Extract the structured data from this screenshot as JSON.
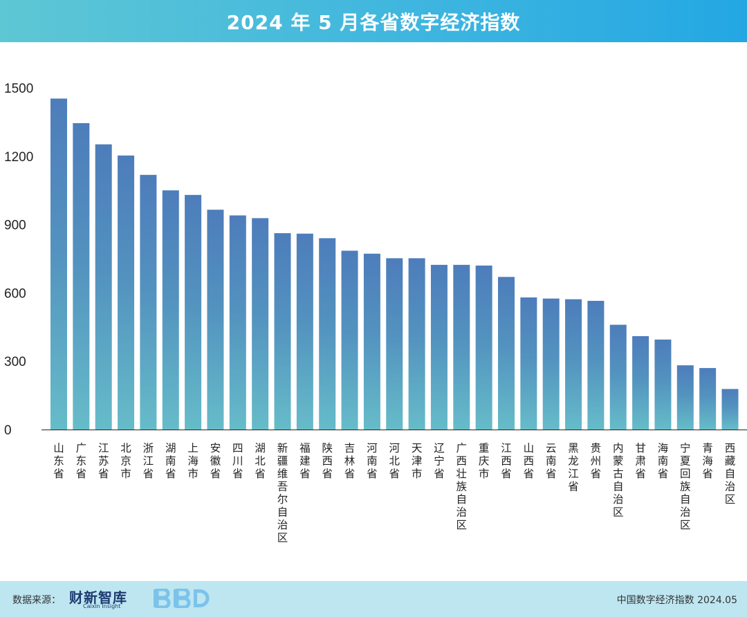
{
  "header": {
    "title": "2024 年 5 月各省数字经济指数"
  },
  "chart_data": {
    "type": "bar",
    "title": "2024 年 5 月各省数字经济指数",
    "xlabel": "",
    "ylabel": "",
    "ylim": [
      0,
      1500
    ],
    "yticks": [
      0,
      300,
      600,
      900,
      1200,
      1500
    ],
    "grid": false,
    "categories": [
      "山东省",
      "广东省",
      "江苏省",
      "北京市",
      "浙江省",
      "湖南省",
      "上海市",
      "安徽省",
      "四川省",
      "湖北省",
      "新疆维吾尔自治区",
      "福建省",
      "陕西省",
      "吉林省",
      "河南省",
      "河北省",
      "天津市",
      "辽宁省",
      "广西壮族自治区",
      "重庆市",
      "江西省",
      "山西省",
      "云南省",
      "黑龙江省",
      "贵州省",
      "内蒙古自治区",
      "甘肃省",
      "海南省",
      "宁夏回族自治区",
      "青海省",
      "西藏自治区"
    ],
    "values": [
      1453,
      1345,
      1252,
      1203,
      1118,
      1050,
      1030,
      965,
      940,
      928,
      862,
      860,
      840,
      785,
      772,
      752,
      752,
      723,
      723,
      720,
      670,
      580,
      575,
      572,
      565,
      460,
      410,
      395,
      282,
      270,
      178
    ],
    "colors": {
      "bar_top": "#4d7dbb",
      "bar_bottom": "#66bcc9",
      "axis": "#222222"
    }
  },
  "footer": {
    "source_label": "数据来源：",
    "logo_name": "财新智库",
    "logo_sub": "Caixin Insight",
    "logo_bbd": "BBD",
    "right_text": "中国数字经济指数  2024.05"
  }
}
